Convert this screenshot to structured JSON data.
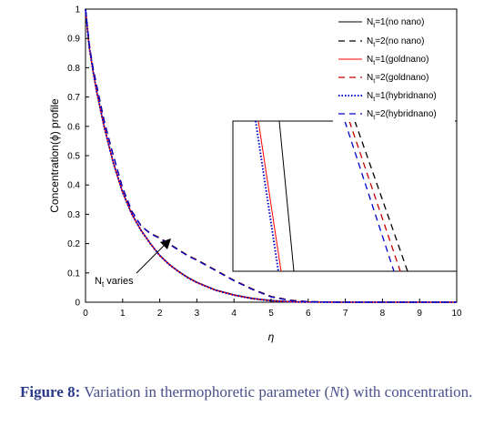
{
  "chart_data": {
    "type": "line",
    "xlabel": "η",
    "ylabel": "Concentration(ϕ) profile",
    "xlim": [
      0,
      10
    ],
    "ylim": [
      0,
      1
    ],
    "xticks": [
      "0",
      "1",
      "2",
      "3",
      "4",
      "5",
      "6",
      "7",
      "8",
      "9",
      "10"
    ],
    "yticks": [
      "0",
      "0.1",
      "0.2",
      "0.3",
      "0.4",
      "0.5",
      "0.6",
      "0.7",
      "0.8",
      "0.9",
      "1"
    ],
    "x": [
      0,
      0.1,
      0.2,
      0.3,
      0.5,
      0.75,
      1,
      1.25,
      1.5,
      1.75,
      2,
      2.25,
      2.5,
      2.75,
      3,
      3.5,
      4,
      4.5,
      5,
      5.5,
      6,
      7,
      8,
      9,
      10
    ],
    "series": [
      {
        "name": "N_t=1(no nano)",
        "color": "#000000",
        "style": "solid",
        "values": [
          1.0,
          0.87,
          0.79,
          0.72,
          0.6,
          0.475,
          0.375,
          0.3,
          0.245,
          0.2,
          0.16,
          0.13,
          0.106,
          0.085,
          0.068,
          0.042,
          0.025,
          0.013,
          0.006,
          0.002,
          0.0005,
          0,
          0,
          0,
          0
        ]
      },
      {
        "name": "N_t=2(no nano)",
        "color": "#000000",
        "style": "dashed",
        "values": [
          1.0,
          0.88,
          0.8,
          0.74,
          0.62,
          0.5,
          0.39,
          0.31,
          0.26,
          0.235,
          0.22,
          0.2,
          0.18,
          0.16,
          0.145,
          0.11,
          0.075,
          0.045,
          0.02,
          0.007,
          0.002,
          0,
          0,
          0,
          0
        ]
      },
      {
        "name": "N_t=1(goldnano)",
        "color": "#ff0000",
        "style": "solid",
        "values": [
          1.0,
          0.87,
          0.79,
          0.72,
          0.6,
          0.475,
          0.375,
          0.3,
          0.244,
          0.199,
          0.159,
          0.129,
          0.105,
          0.084,
          0.067,
          0.041,
          0.024,
          0.012,
          0.005,
          0.0015,
          0.0004,
          0,
          0,
          0,
          0
        ]
      },
      {
        "name": "N_t=2(goldnano)",
        "color": "#cc0000",
        "style": "dashed",
        "values": [
          1.0,
          0.88,
          0.8,
          0.74,
          0.62,
          0.5,
          0.39,
          0.31,
          0.26,
          0.234,
          0.219,
          0.199,
          0.179,
          0.159,
          0.144,
          0.109,
          0.074,
          0.044,
          0.019,
          0.0065,
          0.0018,
          0,
          0,
          0,
          0
        ]
      },
      {
        "name": "N_t=1(hybridnano)",
        "color": "#0000cc",
        "style": "dotted",
        "values": [
          1.0,
          0.87,
          0.79,
          0.72,
          0.6,
          0.475,
          0.375,
          0.3,
          0.244,
          0.199,
          0.159,
          0.129,
          0.105,
          0.084,
          0.067,
          0.041,
          0.024,
          0.012,
          0.005,
          0.0015,
          0.0004,
          0,
          0,
          0,
          0
        ]
      },
      {
        "name": "N_t=2(hybridnano)",
        "color": "#0000cc",
        "style": "dashed",
        "values": [
          1.0,
          0.88,
          0.8,
          0.74,
          0.62,
          0.5,
          0.39,
          0.31,
          0.26,
          0.233,
          0.218,
          0.198,
          0.178,
          0.158,
          0.143,
          0.108,
          0.073,
          0.043,
          0.018,
          0.006,
          0.0016,
          0,
          0,
          0,
          0
        ]
      }
    ],
    "legend": {
      "position": "top-right",
      "entries": [
        {
          "pre": "N",
          "sub": "t",
          "post": "=1(no nano)"
        },
        {
          "pre": "N",
          "sub": "t",
          "post": "=2(no nano)"
        },
        {
          "pre": "N",
          "sub": "t",
          "post": "=1(goldnano)"
        },
        {
          "pre": "N",
          "sub": "t",
          "post": "=2(goldnano)"
        },
        {
          "pre": "N",
          "sub": "t",
          "post": "=1(hybridnano)"
        },
        {
          "pre": "N",
          "sub": "t",
          "post": "=2(hybridnano)"
        }
      ]
    },
    "annotation": {
      "pre": "N",
      "sub": "t",
      "post": " varies"
    },
    "inset": {
      "position": "lower-right",
      "description_hidden": true
    }
  },
  "caption": {
    "label": "Figure 8:",
    "text": "Variation in thermophoretic parameter (",
    "italic": "N",
    "text2": "t) with concentration."
  }
}
